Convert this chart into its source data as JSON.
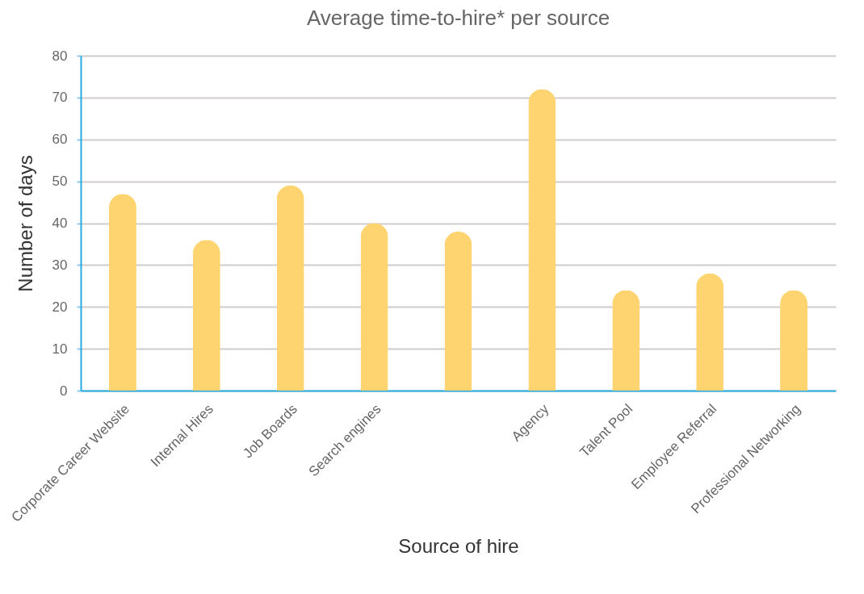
{
  "chart_data": {
    "type": "bar",
    "title": "Average time-to-hire* per source",
    "xlabel": "Source of hire",
    "ylabel": "Number of days",
    "categories": [
      "Corporate Career Website",
      "Internal Hires",
      "Job Boards",
      "Search engines",
      null,
      "Agency",
      "Talent Pool",
      "Employee Referral",
      "Professional Networking"
    ],
    "values": [
      47,
      36,
      49,
      40,
      38,
      72,
      24,
      28,
      24
    ],
    "color": "#fdd46f",
    "ylim": [
      0,
      80
    ],
    "yticks": [
      0,
      10,
      20,
      30,
      40,
      50,
      60,
      70,
      80
    ],
    "grid": "y"
  }
}
